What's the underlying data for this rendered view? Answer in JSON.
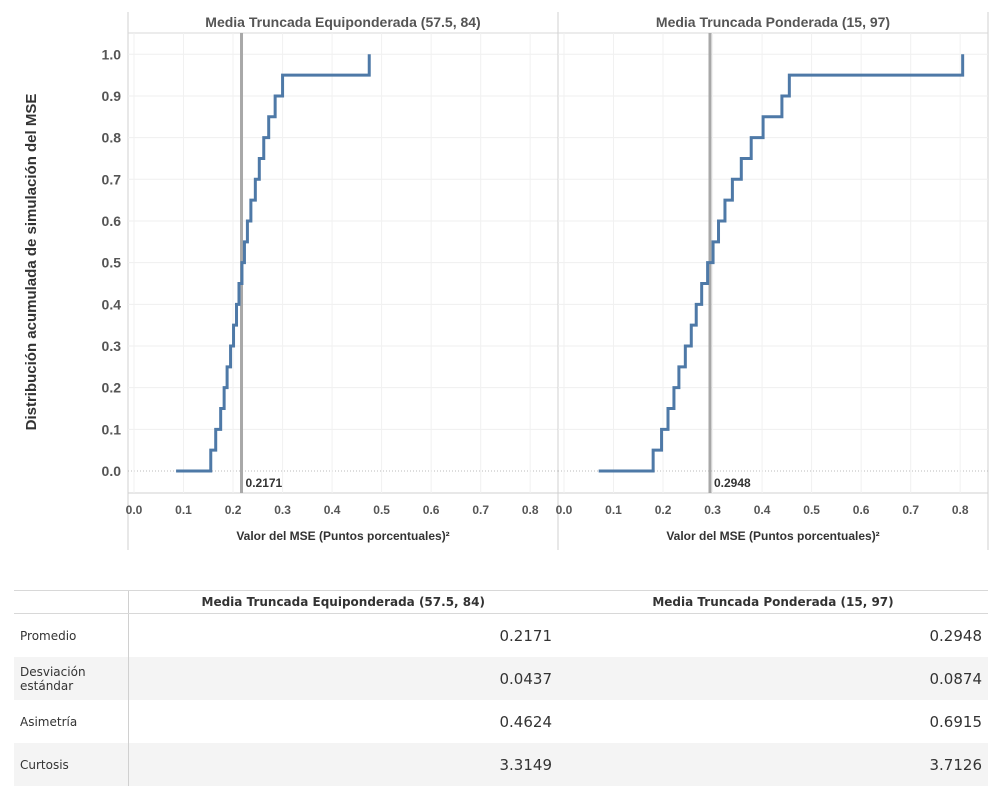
{
  "chart_data": {
    "type": "line",
    "subtype": "step-ecdf",
    "ylabel": "Distribución acumulada de simulación del MSE",
    "xlabel": "Valor del MSE (Puntos porcentuales)²",
    "ylim": [
      -0.05,
      1.05
    ],
    "yticks": [
      "0.0",
      "0.1",
      "0.2",
      "0.3",
      "0.4",
      "0.5",
      "0.6",
      "0.7",
      "0.8",
      "0.9",
      "1.0"
    ],
    "grid": true,
    "color": "#4e79a7",
    "panels": [
      {
        "title": "Media Truncada Equiponderada (57.5, 84)",
        "xlim": [
          0.0,
          0.84
        ],
        "xticks": [
          "0.0",
          "0.1",
          "0.2",
          "0.3",
          "0.4",
          "0.5",
          "0.6",
          "0.7",
          "0.8"
        ],
        "reference_line": {
          "value": 0.2171,
          "label": "0.2171"
        },
        "steps": [
          [
            0.085,
            0.0
          ],
          [
            0.155,
            0.05
          ],
          [
            0.165,
            0.1
          ],
          [
            0.175,
            0.15
          ],
          [
            0.182,
            0.2
          ],
          [
            0.188,
            0.25
          ],
          [
            0.195,
            0.3
          ],
          [
            0.201,
            0.35
          ],
          [
            0.207,
            0.4
          ],
          [
            0.212,
            0.45
          ],
          [
            0.218,
            0.5
          ],
          [
            0.223,
            0.55
          ],
          [
            0.229,
            0.6
          ],
          [
            0.236,
            0.65
          ],
          [
            0.245,
            0.7
          ],
          [
            0.253,
            0.75
          ],
          [
            0.262,
            0.8
          ],
          [
            0.272,
            0.85
          ],
          [
            0.285,
            0.9
          ],
          [
            0.3,
            0.95
          ],
          [
            0.475,
            1.0
          ]
        ]
      },
      {
        "title": "Media Truncada Ponderada (15, 97)",
        "xlim": [
          0.0,
          0.84
        ],
        "xticks": [
          "0.0",
          "0.1",
          "0.2",
          "0.3",
          "0.4",
          "0.5",
          "0.6",
          "0.7",
          "0.8"
        ],
        "reference_line": {
          "value": 0.2948,
          "label": "0.2948"
        },
        "steps": [
          [
            0.07,
            0.0
          ],
          [
            0.18,
            0.05
          ],
          [
            0.197,
            0.1
          ],
          [
            0.21,
            0.15
          ],
          [
            0.222,
            0.2
          ],
          [
            0.232,
            0.25
          ],
          [
            0.245,
            0.3
          ],
          [
            0.257,
            0.35
          ],
          [
            0.267,
            0.4
          ],
          [
            0.278,
            0.45
          ],
          [
            0.29,
            0.5
          ],
          [
            0.301,
            0.55
          ],
          [
            0.312,
            0.6
          ],
          [
            0.325,
            0.65
          ],
          [
            0.34,
            0.7
          ],
          [
            0.358,
            0.75
          ],
          [
            0.378,
            0.8
          ],
          [
            0.402,
            0.85
          ],
          [
            0.44,
            0.9
          ],
          [
            0.455,
            0.95
          ],
          [
            0.805,
            1.0
          ]
        ]
      }
    ]
  },
  "table": {
    "headers": [
      "",
      "Media Truncada Equiponderada (57.5, 84)",
      "Media Truncada Ponderada (15, 97)"
    ],
    "rows": [
      {
        "label": "Promedio",
        "v1": "0.2171",
        "v2": "0.2948"
      },
      {
        "label": "Desviación estándar",
        "v1": "0.0437",
        "v2": "0.0874"
      },
      {
        "label": "Asimetría",
        "v1": "0.4624",
        "v2": "0.6915"
      },
      {
        "label": "Curtosis",
        "v1": "3.3149",
        "v2": "3.7126"
      }
    ]
  }
}
